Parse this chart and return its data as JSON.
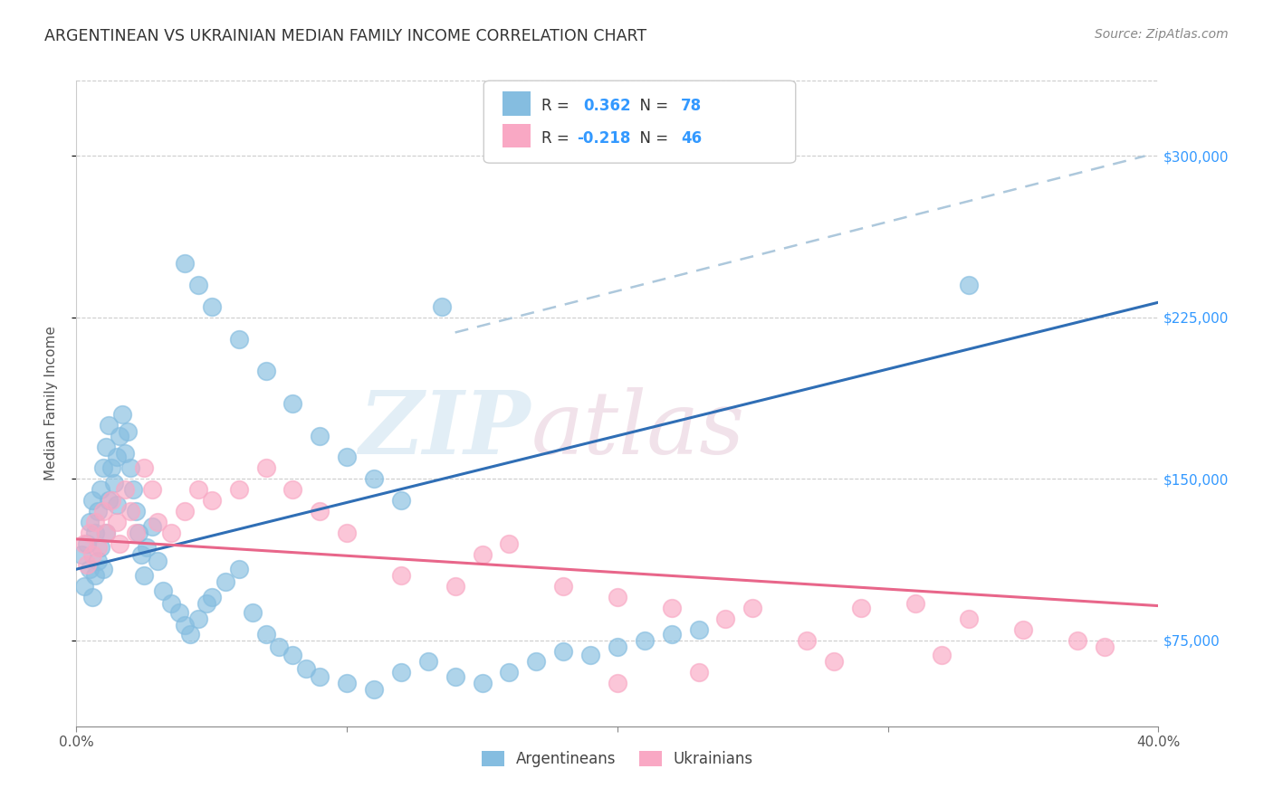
{
  "title": "ARGENTINEAN VS UKRAINIAN MEDIAN FAMILY INCOME CORRELATION CHART",
  "source": "Source: ZipAtlas.com",
  "ylabel": "Median Family Income",
  "ytick_labels": [
    "$75,000",
    "$150,000",
    "$225,000",
    "$300,000"
  ],
  "ytick_values": [
    75000,
    150000,
    225000,
    300000
  ],
  "xlim": [
    0.0,
    0.4
  ],
  "ylim": [
    35000,
    335000
  ],
  "blue_R": 0.362,
  "blue_N": 78,
  "pink_R": -0.218,
  "pink_N": 46,
  "blue_color": "#85bde0",
  "pink_color": "#f9a8c4",
  "blue_line_color": "#2f6eb5",
  "pink_line_color": "#e8668a",
  "dash_color": "#adc8dc",
  "blue_line_x": [
    0.0,
    0.4
  ],
  "blue_line_y": [
    108000,
    232000
  ],
  "pink_line_x": [
    0.0,
    0.4
  ],
  "pink_line_y": [
    122000,
    91000
  ],
  "dash_line_x": [
    0.14,
    0.395
  ],
  "dash_line_y": [
    218000,
    300000
  ],
  "blue_x": [
    0.002,
    0.003,
    0.004,
    0.005,
    0.005,
    0.006,
    0.006,
    0.007,
    0.007,
    0.008,
    0.008,
    0.009,
    0.009,
    0.01,
    0.01,
    0.011,
    0.011,
    0.012,
    0.012,
    0.013,
    0.014,
    0.015,
    0.015,
    0.016,
    0.017,
    0.018,
    0.019,
    0.02,
    0.021,
    0.022,
    0.023,
    0.024,
    0.025,
    0.026,
    0.028,
    0.03,
    0.032,
    0.035,
    0.038,
    0.04,
    0.042,
    0.045,
    0.048,
    0.05,
    0.055,
    0.06,
    0.065,
    0.07,
    0.075,
    0.08,
    0.085,
    0.09,
    0.1,
    0.11,
    0.12,
    0.13,
    0.14,
    0.15,
    0.16,
    0.17,
    0.18,
    0.19,
    0.2,
    0.21,
    0.22,
    0.23,
    0.04,
    0.045,
    0.05,
    0.06,
    0.07,
    0.08,
    0.09,
    0.1,
    0.11,
    0.12,
    0.135,
    0.33
  ],
  "blue_y": [
    115000,
    100000,
    120000,
    108000,
    130000,
    95000,
    140000,
    105000,
    125000,
    112000,
    135000,
    118000,
    145000,
    108000,
    155000,
    125000,
    165000,
    140000,
    175000,
    155000,
    148000,
    138000,
    160000,
    170000,
    180000,
    162000,
    172000,
    155000,
    145000,
    135000,
    125000,
    115000,
    105000,
    118000,
    128000,
    112000,
    98000,
    92000,
    88000,
    82000,
    78000,
    85000,
    92000,
    95000,
    102000,
    108000,
    88000,
    78000,
    72000,
    68000,
    62000,
    58000,
    55000,
    52000,
    60000,
    65000,
    58000,
    55000,
    60000,
    65000,
    70000,
    68000,
    72000,
    75000,
    78000,
    80000,
    250000,
    240000,
    230000,
    215000,
    200000,
    185000,
    170000,
    160000,
    150000,
    140000,
    230000,
    240000
  ],
  "pink_x": [
    0.003,
    0.004,
    0.005,
    0.006,
    0.007,
    0.008,
    0.01,
    0.011,
    0.013,
    0.015,
    0.016,
    0.018,
    0.02,
    0.022,
    0.025,
    0.028,
    0.03,
    0.035,
    0.04,
    0.045,
    0.05,
    0.06,
    0.07,
    0.08,
    0.09,
    0.1,
    0.12,
    0.14,
    0.15,
    0.16,
    0.18,
    0.2,
    0.22,
    0.24,
    0.25,
    0.27,
    0.29,
    0.31,
    0.33,
    0.35,
    0.37,
    0.38,
    0.32,
    0.28,
    0.23,
    0.2
  ],
  "pink_y": [
    120000,
    110000,
    125000,
    115000,
    130000,
    118000,
    135000,
    125000,
    140000,
    130000,
    120000,
    145000,
    135000,
    125000,
    155000,
    145000,
    130000,
    125000,
    135000,
    145000,
    140000,
    145000,
    155000,
    145000,
    135000,
    125000,
    105000,
    100000,
    115000,
    120000,
    100000,
    95000,
    90000,
    85000,
    90000,
    75000,
    90000,
    92000,
    85000,
    80000,
    75000,
    72000,
    68000,
    65000,
    60000,
    55000
  ]
}
